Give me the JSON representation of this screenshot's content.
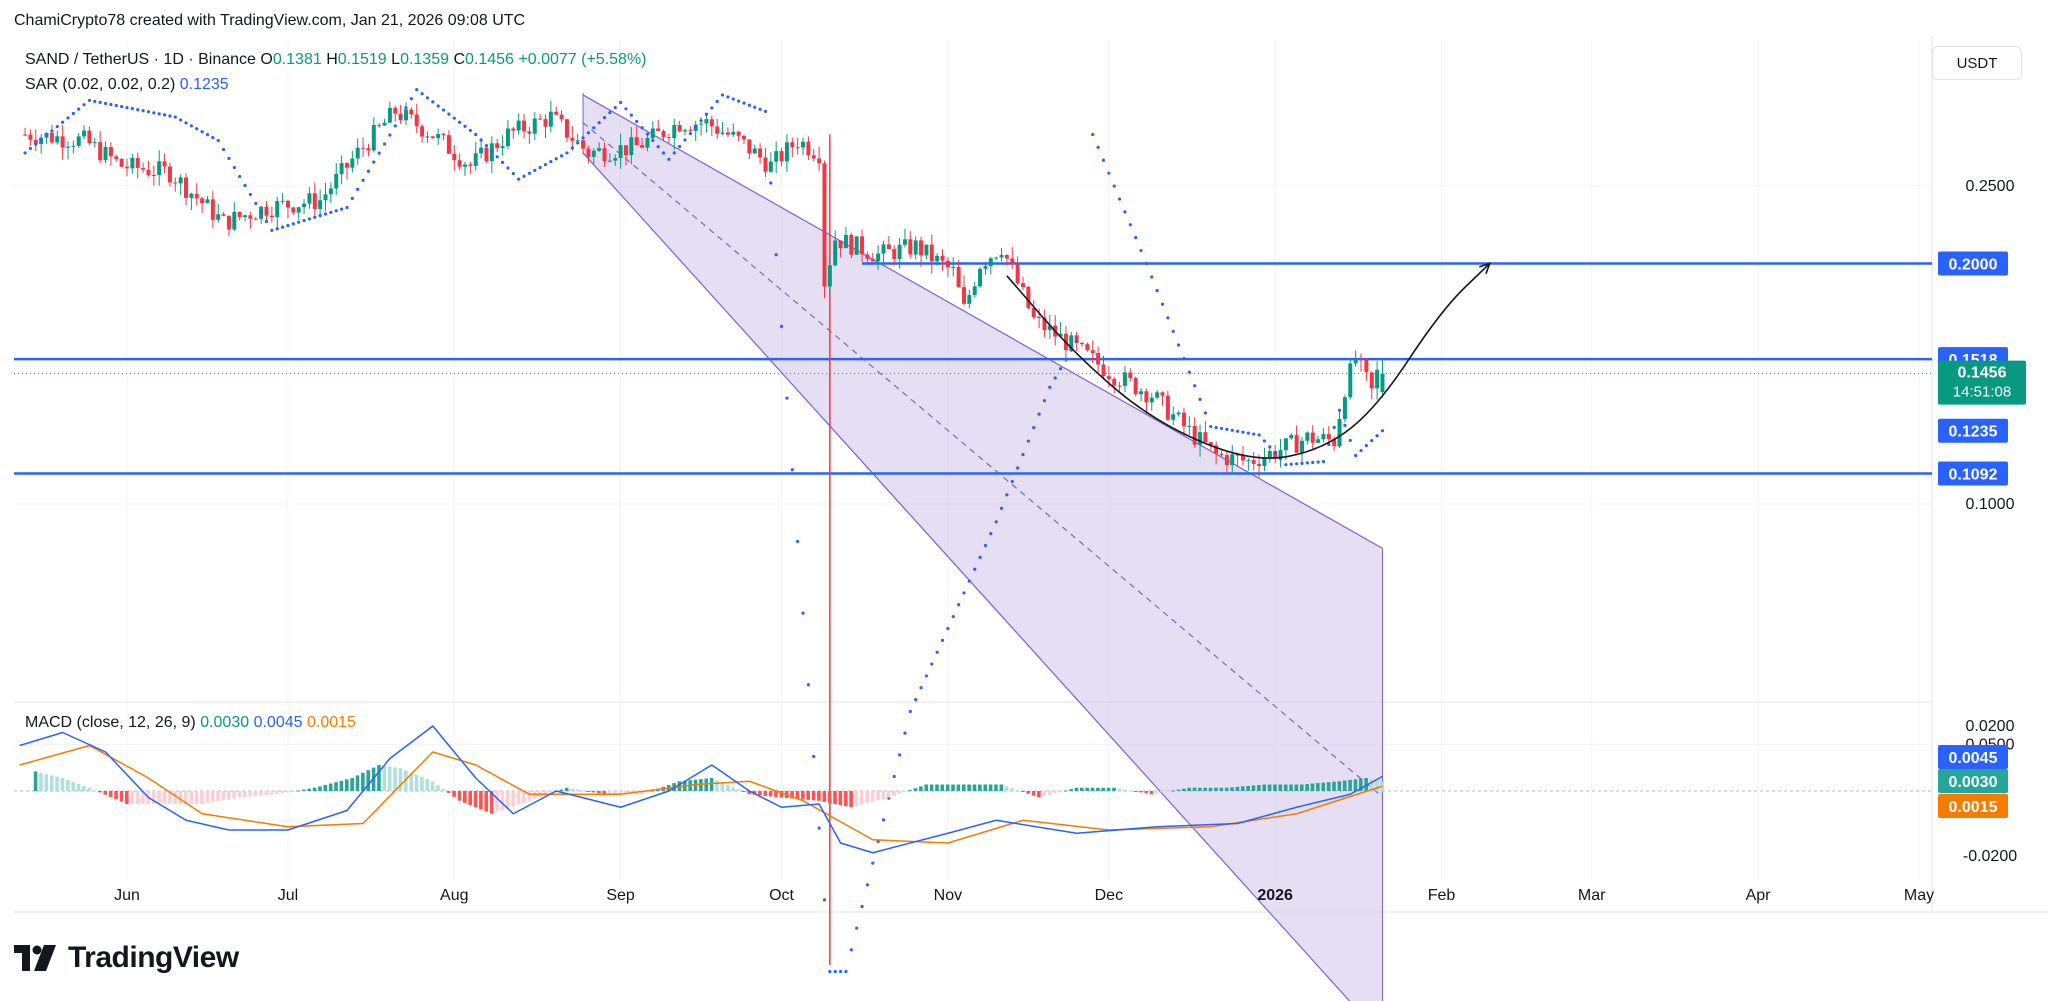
{
  "header": {
    "credit": "ChamiCrypto78 created with TradingView.com, Jan 21, 2026 09:08 UTC"
  },
  "legend": {
    "symbol": "SAND / TetherUS · 1D · Binance",
    "o_label": "O",
    "o": "0.1381",
    "h_label": "H",
    "h": "0.1519",
    "l_label": "L",
    "l": "0.1359",
    "c_label": "C",
    "c": "0.1456",
    "change": "+0.0077 (+5.58%)",
    "sar_label": "SAR (0.02, 0.02, 0.2)",
    "sar_value": "0.1235"
  },
  "macd_legend": {
    "label": "MACD (close, 12, 26, 9)",
    "hist": "0.0030",
    "macd": "0.0045",
    "signal": "0.0015"
  },
  "currency_button": "USDT",
  "logo_text": "TradingView",
  "colors": {
    "up": "#089981",
    "down": "#f23645",
    "hline": "#2962ff",
    "channel_fill": "#d1c4e9",
    "channel_line": "#7b61d9",
    "macd": "#2962ff",
    "signal": "#f57c00",
    "sar": "#2962ff",
    "last_price_bg": "#089981",
    "bg": "#ffffff"
  },
  "chart_data": {
    "type": "candlestick",
    "title": "SAND / TetherUS · 1D · Binance",
    "price_scale": {
      "ticks": [
        {
          "value": 0.05,
          "label": "0.0500"
        },
        {
          "value": 0.1,
          "label": "0.1000"
        },
        {
          "value": 0.25,
          "label": "0.2500"
        }
      ],
      "scale": "log",
      "range": [
        0.025,
        0.33
      ]
    },
    "price_badges": [
      {
        "value": 0.2,
        "label": "0.2000",
        "kind": "level"
      },
      {
        "value": 0.1518,
        "label": "0.1518",
        "kind": "level"
      },
      {
        "value": 0.1456,
        "label": "0.1456",
        "kind": "last",
        "countdown": "14:51:08"
      },
      {
        "value": 0.1235,
        "label": "0.1235",
        "kind": "sar"
      },
      {
        "value": 0.1092,
        "label": "0.1092",
        "kind": "level"
      }
    ],
    "horizontal_levels": [
      0.2,
      0.1518,
      0.1092
    ],
    "last_price": 0.1456,
    "x_axis": {
      "labels": [
        {
          "date": "2025-06-01",
          "label": "Jun"
        },
        {
          "date": "2025-07-01",
          "label": "Jul"
        },
        {
          "date": "2025-08-01",
          "label": "Aug"
        },
        {
          "date": "2025-09-01",
          "label": "Sep"
        },
        {
          "date": "2025-10-01",
          "label": "Oct"
        },
        {
          "date": "2025-11-01",
          "label": "Nov"
        },
        {
          "date": "2025-12-01",
          "label": "Dec"
        },
        {
          "date": "2026-01-01",
          "label": "2026",
          "bold": true
        },
        {
          "date": "2026-02-01",
          "label": "Feb"
        },
        {
          "date": "2026-03-01",
          "label": "Mar"
        },
        {
          "date": "2026-04-01",
          "label": "Apr"
        },
        {
          "date": "2026-05-01",
          "label": "May"
        }
      ],
      "range": [
        "2025-05-12",
        "2026-05-20"
      ]
    },
    "price_path": [
      [
        "2025-05-15",
        0.29
      ],
      [
        "2025-05-25",
        0.285
      ],
      [
        "2025-06-01",
        0.265
      ],
      [
        "2025-06-10",
        0.26
      ],
      [
        "2025-06-20",
        0.225
      ],
      [
        "2025-06-28",
        0.235
      ],
      [
        "2025-07-08",
        0.24
      ],
      [
        "2025-07-15",
        0.275
      ],
      [
        "2025-07-22",
        0.31
      ],
      [
        "2025-07-29",
        0.29
      ],
      [
        "2025-08-05",
        0.265
      ],
      [
        "2025-08-12",
        0.29
      ],
      [
        "2025-08-20",
        0.305
      ],
      [
        "2025-08-27",
        0.275
      ],
      [
        "2025-09-05",
        0.28
      ],
      [
        "2025-09-13",
        0.3
      ],
      [
        "2025-09-18",
        0.3
      ],
      [
        "2025-09-24",
        0.285
      ],
      [
        "2025-09-30",
        0.265
      ],
      [
        "2025-10-05",
        0.285
      ],
      [
        "2025-10-09",
        0.275
      ],
      [
        "2025-10-10",
        0.19
      ],
      [
        "2025-10-12",
        0.215
      ],
      [
        "2025-10-20",
        0.205
      ],
      [
        "2025-10-27",
        0.21
      ],
      [
        "2025-11-03",
        0.195
      ],
      [
        "2025-11-05",
        0.175
      ],
      [
        "2025-11-08",
        0.2
      ],
      [
        "2025-11-12",
        0.21
      ],
      [
        "2025-11-18",
        0.17
      ],
      [
        "2025-11-25",
        0.158
      ],
      [
        "2025-12-03",
        0.145
      ],
      [
        "2025-12-10",
        0.137
      ],
      [
        "2025-12-16",
        0.125
      ],
      [
        "2025-12-22",
        0.115
      ],
      [
        "2025-12-28",
        0.113
      ],
      [
        "2026-01-03",
        0.117
      ],
      [
        "2026-01-08",
        0.121
      ],
      [
        "2026-01-13",
        0.12
      ],
      [
        "2026-01-15",
        0.14
      ],
      [
        "2026-01-17",
        0.152
      ],
      [
        "2026-01-20",
        0.1381
      ],
      [
        "2026-01-21",
        0.1456
      ]
    ],
    "last_candle": {
      "date": "2026-01-21",
      "open": 0.1381,
      "high": 0.1519,
      "low": 0.1359,
      "close": 0.1456
    },
    "crash_wick": {
      "date": "2025-10-10",
      "high": 0.29,
      "low": 0.0265
    },
    "parabolic_sar": [
      [
        "2025-05-13",
        0.275
      ],
      [
        "2025-05-25",
        0.32
      ],
      [
        "2025-06-10",
        0.305
      ],
      [
        "2025-06-18",
        0.285
      ],
      [
        "2025-06-28",
        0.22
      ],
      [
        "2025-07-12",
        0.235
      ],
      [
        "2025-07-25",
        0.33
      ],
      [
        "2025-08-05",
        0.29
      ],
      [
        "2025-08-13",
        0.255
      ],
      [
        "2025-08-22",
        0.275
      ],
      [
        "2025-09-01",
        0.318
      ],
      [
        "2025-09-10",
        0.27
      ],
      [
        "2025-09-20",
        0.325
      ],
      [
        "2025-09-28",
        0.31
      ],
      [
        "2025-10-10",
        0.026
      ],
      [
        "2025-10-13",
        0.026
      ],
      [
        "2025-10-25",
        0.055
      ],
      [
        "2025-11-10",
        0.095
      ],
      [
        "2025-11-20",
        0.14
      ],
      [
        "2025-11-25",
        0.16
      ],
      [
        "2025-11-28",
        0.29
      ],
      [
        "2025-12-08",
        0.2
      ],
      [
        "2025-12-20",
        0.125
      ],
      [
        "2025-12-29",
        0.122
      ],
      [
        "2026-01-03",
        0.112
      ],
      [
        "2026-01-10",
        0.113
      ],
      [
        "2026-01-13",
        0.131
      ],
      [
        "2026-01-16",
        0.115
      ],
      [
        "2026-01-21",
        0.1235
      ]
    ],
    "channel": {
      "upper": [
        [
          "2025-08-25",
          0.325
        ],
        [
          "2026-01-21",
          0.088
        ]
      ],
      "mid": [
        [
          "2025-08-25",
          0.3
        ],
        [
          "2026-01-21",
          0.043
        ]
      ],
      "lower": [
        [
          "2025-08-25",
          0.275
        ],
        [
          "2026-01-21",
          0.0215
        ]
      ]
    },
    "rounding_bottom": [
      [
        "2025-11-12",
        0.193
      ],
      [
        "2025-11-25",
        0.153
      ],
      [
        "2025-12-10",
        0.126
      ],
      [
        "2025-12-28",
        0.1125
      ],
      [
        "2026-01-10",
        0.117
      ],
      [
        "2026-01-20",
        0.132
      ],
      [
        "2026-02-01",
        0.175
      ],
      [
        "2026-02-10",
        0.2
      ]
    ],
    "macd_pane": {
      "ticks": [
        {
          "value": 0.02,
          "label": "0.0200"
        },
        {
          "value": -0.02,
          "label": "-0.0200"
        }
      ],
      "range": [
        -0.024,
        0.024
      ],
      "badges": [
        {
          "value": 0.0045,
          "label": "0.0045",
          "series": "macd"
        },
        {
          "value": 0.003,
          "label": "0.0030",
          "series": "hist"
        },
        {
          "value": 0.0015,
          "label": "0.0015",
          "series": "signal"
        }
      ],
      "macd": [
        [
          "2025-05-12",
          0.014
        ],
        [
          "2025-05-20",
          0.018
        ],
        [
          "2025-05-28",
          0.012
        ],
        [
          "2025-06-05",
          -0.002
        ],
        [
          "2025-06-12",
          -0.009
        ],
        [
          "2025-06-20",
          -0.012
        ],
        [
          "2025-07-01",
          -0.012
        ],
        [
          "2025-07-12",
          -0.006
        ],
        [
          "2025-07-20",
          0.01
        ],
        [
          "2025-07-28",
          0.02
        ],
        [
          "2025-08-05",
          0.004
        ],
        [
          "2025-08-12",
          -0.007
        ],
        [
          "2025-08-20",
          0.0
        ],
        [
          "2025-09-01",
          -0.005
        ],
        [
          "2025-09-10",
          0.0
        ],
        [
          "2025-09-18",
          0.008
        ],
        [
          "2025-09-25",
          0.0
        ],
        [
          "2025-10-01",
          -0.005
        ],
        [
          "2025-10-08",
          -0.004
        ],
        [
          "2025-10-12",
          -0.016
        ],
        [
          "2025-10-18",
          -0.019
        ],
        [
          "2025-11-01",
          -0.013
        ],
        [
          "2025-11-10",
          -0.009
        ],
        [
          "2025-11-25",
          -0.013
        ],
        [
          "2025-12-10",
          -0.011
        ],
        [
          "2025-12-25",
          -0.01
        ],
        [
          "2026-01-05",
          -0.005
        ],
        [
          "2026-01-15",
          -0.001
        ],
        [
          "2026-01-21",
          0.0045
        ]
      ],
      "signal": [
        [
          "2025-05-12",
          0.008
        ],
        [
          "2025-05-25",
          0.014
        ],
        [
          "2025-06-05",
          0.004
        ],
        [
          "2025-06-15",
          -0.007
        ],
        [
          "2025-07-01",
          -0.011
        ],
        [
          "2025-07-15",
          -0.01
        ],
        [
          "2025-07-28",
          0.012
        ],
        [
          "2025-08-05",
          0.008
        ],
        [
          "2025-08-15",
          -0.001
        ],
        [
          "2025-09-01",
          -0.001
        ],
        [
          "2025-09-15",
          0.002
        ],
        [
          "2025-09-25",
          0.003
        ],
        [
          "2025-10-05",
          -0.003
        ],
        [
          "2025-10-18",
          -0.015
        ],
        [
          "2025-11-01",
          -0.016
        ],
        [
          "2025-11-15",
          -0.009
        ],
        [
          "2025-12-01",
          -0.012
        ],
        [
          "2025-12-20",
          -0.011
        ],
        [
          "2026-01-05",
          -0.007
        ],
        [
          "2026-01-21",
          0.0015
        ]
      ],
      "histogram": [
        [
          "2025-05-15",
          0.006
        ],
        [
          "2025-05-20",
          0.004
        ],
        [
          "2025-05-25",
          0.001
        ],
        [
          "2025-06-01",
          -0.004
        ],
        [
          "2025-06-08",
          -0.004
        ],
        [
          "2025-06-15",
          -0.004
        ],
        [
          "2025-06-22",
          -0.002
        ],
        [
          "2025-06-29",
          -0.001
        ],
        [
          "2025-07-06",
          0.001
        ],
        [
          "2025-07-13",
          0.004
        ],
        [
          "2025-07-18",
          0.008
        ],
        [
          "2025-07-22",
          0.007
        ],
        [
          "2025-07-28",
          0.003
        ],
        [
          "2025-08-02",
          -0.003
        ],
        [
          "2025-08-08",
          -0.007
        ],
        [
          "2025-08-15",
          -0.003
        ],
        [
          "2025-08-22",
          0.001
        ],
        [
          "2025-08-29",
          -0.001
        ],
        [
          "2025-09-05",
          -0.001
        ],
        [
          "2025-09-12",
          0.003
        ],
        [
          "2025-09-18",
          0.004
        ],
        [
          "2025-09-25",
          -0.001
        ],
        [
          "2025-10-01",
          -0.002
        ],
        [
          "2025-10-08",
          -0.003
        ],
        [
          "2025-10-14",
          -0.005
        ],
        [
          "2025-10-21",
          -0.002
        ],
        [
          "2025-10-28",
          0.002
        ],
        [
          "2025-11-04",
          0.002
        ],
        [
          "2025-11-11",
          0.002
        ],
        [
          "2025-11-18",
          -0.002
        ],
        [
          "2025-11-25",
          0.001
        ],
        [
          "2025-12-02",
          0.001
        ],
        [
          "2025-12-09",
          -0.001
        ],
        [
          "2025-12-16",
          0.001
        ],
        [
          "2025-12-23",
          0.001
        ],
        [
          "2025-12-30",
          0.002
        ],
        [
          "2026-01-06",
          0.002
        ],
        [
          "2026-01-13",
          0.003
        ],
        [
          "2026-01-18",
          0.004
        ],
        [
          "2026-01-21",
          0.003
        ]
      ]
    }
  }
}
